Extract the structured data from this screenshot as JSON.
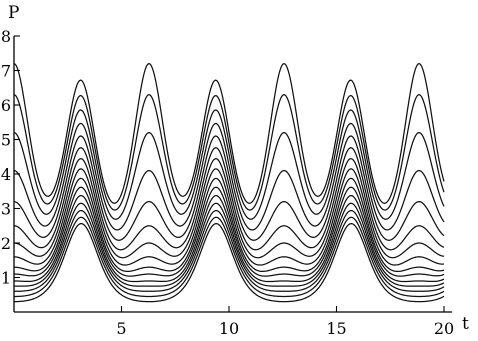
{
  "chart_data": {
    "type": "line",
    "title": "",
    "xlabel": "t",
    "ylabel": "P",
    "xlim": [
      0,
      20
    ],
    "ylim": [
      0,
      8
    ],
    "x_ticks": [
      5,
      10,
      15,
      20
    ],
    "y_ticks": [
      1,
      2,
      3,
      4,
      5,
      6,
      7,
      8
    ],
    "grid": false,
    "legend": "none",
    "description_note": "",
    "family": {
      "period": 6.28,
      "max_P": 7.2,
      "min_P": 0.3,
      "first_peak_t": 3.1,
      "node_t": [
        6.3,
        12.6,
        18.9
      ],
      "node_P": 1.0,
      "initial_values": [
        0.3,
        0.45,
        0.6,
        0.75,
        0.9,
        1.1,
        1.3,
        1.6,
        2.0,
        2.5,
        3.2,
        4.1,
        5.2,
        6.3,
        7.2
      ]
    },
    "series_color": "#111111"
  }
}
